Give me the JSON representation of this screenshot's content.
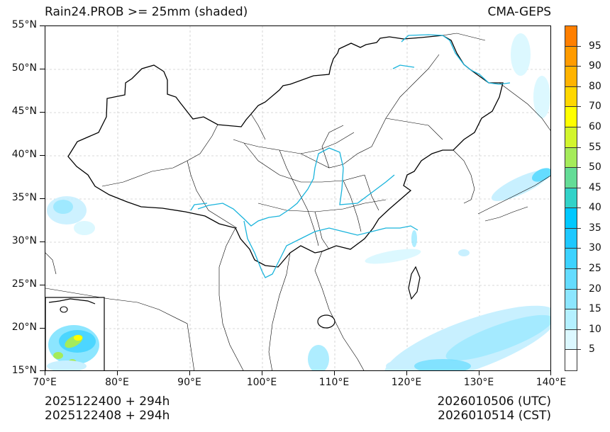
{
  "header": {
    "title_left": "Rain24.PROB >= 25mm (shaded)",
    "title_right": "CMA-GEPS"
  },
  "axes": {
    "lat_labels": [
      "55°N",
      "50°N",
      "45°N",
      "40°N",
      "35°N",
      "30°N",
      "25°N",
      "20°N",
      "15°N"
    ],
    "lon_labels": [
      "70°E",
      "80°E",
      "90°E",
      "100°E",
      "110°E",
      "120°E",
      "130°E",
      "140°E"
    ],
    "lat_range": [
      15,
      55
    ],
    "lon_range": [
      70,
      140
    ]
  },
  "footer": {
    "init_utc": "2025122400 + 294h",
    "init_cst": "2025122408 + 294h",
    "valid_utc": "2026010506 (UTC)",
    "valid_cst": "2026010514 (CST)"
  },
  "colorbar": {
    "labels": [
      "95",
      "90",
      "80",
      "70",
      "60",
      "55",
      "50",
      "45",
      "40",
      "35",
      "30",
      "25",
      "20",
      "15",
      "10",
      "5"
    ],
    "colors_top_to_bottom": [
      "#ff7f00",
      "#ff9b00",
      "#ffb300",
      "#ffd700",
      "#ffff00",
      "#d2f52d",
      "#a5eb5a",
      "#64dc96",
      "#32d2c8",
      "#00c8ff",
      "#1ec8ff",
      "#3cd2ff",
      "#64dcff",
      "#8ce6ff",
      "#b4f0ff",
      "#dcf8ff",
      "#ffffff"
    ]
  },
  "colors": {
    "river": "#1ab4dc",
    "border": "#000000",
    "grid": "#cccccc"
  }
}
